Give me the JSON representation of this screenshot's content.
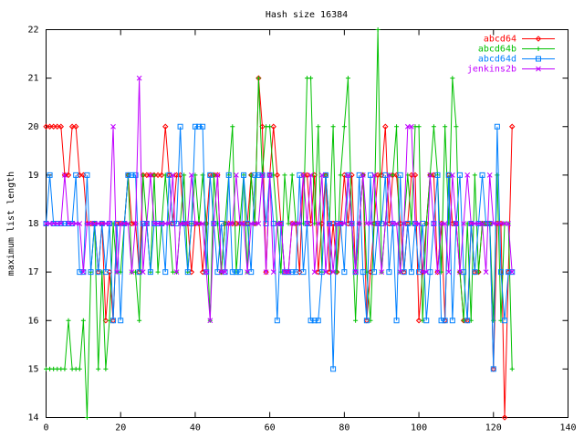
{
  "chart_data": {
    "type": "line",
    "title": "Hash size 16384",
    "y_label": "maximum list length",
    "x": [
      0,
      1,
      2,
      3,
      4,
      5,
      6,
      7,
      8,
      9,
      10,
      11,
      12,
      13,
      14,
      15,
      16,
      17,
      18,
      19,
      20,
      21,
      22,
      23,
      24,
      25,
      26,
      27,
      28,
      29,
      30,
      31,
      32,
      33,
      34,
      35,
      36,
      37,
      38,
      39,
      40,
      41,
      42,
      43,
      44,
      45,
      46,
      47,
      48,
      49,
      50,
      51,
      52,
      53,
      54,
      55,
      56,
      57,
      58,
      59,
      60,
      61,
      62,
      63,
      64,
      65,
      66,
      67,
      68,
      69,
      70,
      71,
      72,
      73,
      74,
      75,
      76,
      77,
      78,
      79,
      80,
      81,
      82,
      83,
      84,
      85,
      86,
      87,
      88,
      89,
      90,
      91,
      92,
      93,
      94,
      95,
      96,
      97,
      98,
      99,
      100,
      101,
      102,
      103,
      104,
      105,
      106,
      107,
      108,
      109,
      110,
      111,
      112,
      113,
      114,
      115,
      116,
      117,
      118,
      119,
      120,
      121,
      122,
      123,
      124,
      125
    ],
    "series": [
      {
        "name": "abcd64",
        "color": "#ff0000",
        "marker": "diamond",
        "values": [
          20,
          20,
          20,
          20,
          20,
          19,
          19,
          20,
          20,
          19,
          19,
          18,
          18,
          18,
          17,
          18,
          16,
          17,
          16,
          18,
          18,
          18,
          19,
          18,
          18,
          17,
          19,
          19,
          19,
          19,
          19,
          19,
          20,
          19,
          18,
          19,
          19,
          18,
          18,
          17,
          18,
          18,
          17,
          18,
          19,
          19,
          19,
          17,
          18,
          18,
          18,
          18,
          18,
          18,
          18,
          19,
          18,
          21,
          20,
          17,
          19,
          20,
          19,
          18,
          17,
          17,
          18,
          18,
          17,
          19,
          19,
          18,
          19,
          17,
          18,
          19,
          17,
          18,
          17,
          18,
          19,
          18,
          19,
          17,
          18,
          19,
          16,
          17,
          18,
          19,
          19,
          20,
          18,
          19,
          19,
          18,
          17,
          18,
          19,
          19,
          16,
          17,
          18,
          19,
          19,
          17,
          18,
          16,
          19,
          18,
          18,
          17,
          16,
          16,
          18,
          17,
          17,
          18,
          18,
          18,
          15,
          18,
          18,
          14,
          17,
          20
        ]
      },
      {
        "name": "abcd64b",
        "color": "#00c000",
        "marker": "plus",
        "values": [
          15,
          15,
          15,
          15,
          15,
          15,
          16,
          15,
          15,
          15,
          16,
          14,
          17,
          18,
          15,
          17,
          15,
          16,
          18,
          17,
          17,
          18,
          19,
          17,
          17,
          16,
          19,
          18,
          17,
          19,
          17,
          18,
          19,
          18,
          17,
          17,
          18,
          19,
          17,
          18,
          19,
          18,
          19,
          18,
          16,
          19,
          18,
          17,
          18,
          19,
          20,
          17,
          18,
          19,
          17,
          19,
          18,
          21,
          19,
          20,
          20,
          19,
          18,
          17,
          19,
          18,
          19,
          18,
          18,
          18,
          21,
          21,
          18,
          20,
          17,
          19,
          18,
          20,
          17,
          19,
          20,
          21,
          18,
          16,
          18,
          19,
          17,
          16,
          18,
          22,
          17,
          18,
          19,
          19,
          20,
          17,
          18,
          19,
          18,
          20,
          20,
          16,
          18,
          19,
          20,
          19,
          17,
          20,
          18,
          21,
          20,
          17,
          16,
          18,
          16,
          19,
          17,
          18,
          18,
          18,
          16,
          19,
          16,
          18,
          18,
          15
        ]
      },
      {
        "name": "abcd64d",
        "color": "#0080ff",
        "marker": "square",
        "values": [
          18,
          19,
          18,
          18,
          18,
          18,
          18,
          18,
          19,
          17,
          17,
          19,
          17,
          18,
          17,
          18,
          17,
          18,
          16,
          18,
          16,
          18,
          19,
          19,
          19,
          17,
          18,
          18,
          17,
          18,
          18,
          18,
          17,
          19,
          18,
          18,
          20,
          18,
          17,
          18,
          20,
          20,
          20,
          17,
          19,
          18,
          17,
          18,
          17,
          19,
          17,
          17,
          17,
          19,
          18,
          17,
          19,
          19,
          19,
          18,
          19,
          18,
          16,
          18,
          17,
          17,
          17,
          17,
          19,
          17,
          18,
          16,
          16,
          16,
          17,
          19,
          18,
          15,
          18,
          18,
          17,
          19,
          18,
          17,
          19,
          17,
          16,
          19,
          17,
          18,
          18,
          19,
          17,
          18,
          16,
          19,
          17,
          18,
          17,
          18,
          17,
          18,
          16,
          17,
          18,
          19,
          16,
          16,
          19,
          16,
          18,
          19,
          17,
          16,
          18,
          17,
          18,
          19,
          18,
          18,
          15,
          20,
          17,
          16,
          17,
          17
        ]
      },
      {
        "name": "jenkins2b",
        "color": "#c000ff",
        "marker": "cross",
        "values": [
          18,
          18,
          18,
          18,
          18,
          19,
          18,
          18,
          18,
          18,
          17,
          18,
          18,
          18,
          18,
          18,
          18,
          18,
          20,
          17,
          18,
          18,
          18,
          17,
          18,
          21,
          17,
          18,
          19,
          18,
          18,
          18,
          18,
          18,
          19,
          17,
          18,
          18,
          18,
          19,
          18,
          18,
          18,
          17,
          16,
          18,
          19,
          17,
          17,
          18,
          18,
          19,
          18,
          18,
          17,
          18,
          18,
          18,
          19,
          17,
          19,
          17,
          18,
          18,
          17,
          17,
          18,
          18,
          18,
          19,
          18,
          19,
          17,
          18,
          19,
          17,
          18,
          17,
          18,
          18,
          18,
          19,
          18,
          17,
          18,
          19,
          18,
          18,
          19,
          18,
          17,
          18,
          19,
          18,
          18,
          17,
          18,
          20,
          20,
          18,
          18,
          17,
          17,
          19,
          18,
          17,
          18,
          18,
          17,
          19,
          18,
          17,
          18,
          19,
          18,
          18,
          18,
          18,
          17,
          19,
          18,
          18,
          18,
          18,
          18,
          17
        ]
      }
    ],
    "xlim": [
      0,
      140
    ],
    "xticks": [
      0,
      20,
      40,
      60,
      80,
      100,
      120,
      140
    ],
    "ylim": [
      14,
      22
    ],
    "yticks": [
      14,
      15,
      16,
      17,
      18,
      19,
      20,
      21,
      22
    ],
    "legend": "top-right",
    "grid": false
  }
}
